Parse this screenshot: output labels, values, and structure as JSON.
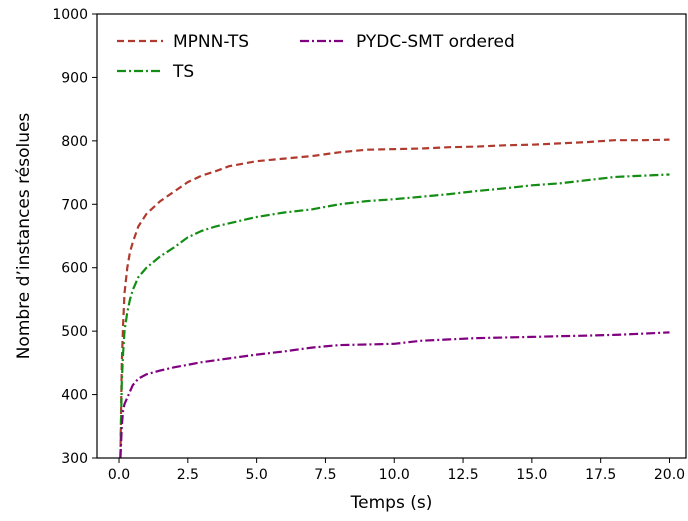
{
  "chart_data": {
    "type": "line",
    "xlabel": "Temps (s)",
    "ylabel": "Nombre d’instances résolues",
    "xlim": [
      -0.8,
      20.6
    ],
    "ylim": [
      300,
      1000
    ],
    "xticks": [
      0.0,
      2.5,
      5.0,
      7.5,
      10.0,
      12.5,
      15.0,
      17.5,
      20.0
    ],
    "xtick_labels": [
      "0.0",
      "2.5",
      "5.0",
      "7.5",
      "10.0",
      "12.5",
      "15.0",
      "17.5",
      "20.0"
    ],
    "yticks": [
      300,
      400,
      500,
      600,
      700,
      800,
      900,
      1000
    ],
    "ytick_labels": [
      "300",
      "400",
      "500",
      "600",
      "700",
      "800",
      "900",
      "1000"
    ],
    "grid": false,
    "legend_position": "top-left",
    "series": [
      {
        "name": "MPNN-TS",
        "color": "#b03a2e",
        "style": "dashed",
        "x": [
          0.05,
          0.1,
          0.15,
          0.2,
          0.3,
          0.4,
          0.5,
          0.7,
          1.0,
          1.5,
          2.0,
          2.5,
          3.0,
          3.5,
          4.0,
          5.0,
          6.0,
          7.0,
          8.0,
          9.0,
          10.0,
          11.0,
          12.0,
          13.0,
          14.0,
          15.0,
          16.0,
          17.0,
          18.0,
          19.0,
          20.0
        ],
        "y": [
          300,
          450,
          510,
          560,
          600,
          625,
          640,
          665,
          685,
          705,
          720,
          735,
          745,
          752,
          760,
          768,
          772,
          776,
          782,
          786,
          787,
          788,
          790,
          791,
          793,
          794,
          796,
          798,
          801,
          801,
          802
        ]
      },
      {
        "name": "TS",
        "color": "#138d13",
        "style": "dashdot",
        "x": [
          0.05,
          0.1,
          0.15,
          0.2,
          0.3,
          0.4,
          0.5,
          0.7,
          1.0,
          1.5,
          2.0,
          2.5,
          3.0,
          3.5,
          4.0,
          5.0,
          6.0,
          7.0,
          8.0,
          9.0,
          10.0,
          11.0,
          12.0,
          13.0,
          14.0,
          15.0,
          16.0,
          17.0,
          18.0,
          19.0,
          20.0
        ],
        "y": [
          300,
          420,
          465,
          500,
          530,
          550,
          565,
          585,
          600,
          618,
          632,
          648,
          658,
          665,
          670,
          680,
          687,
          692,
          700,
          705,
          708,
          712,
          716,
          721,
          725,
          730,
          733,
          738,
          743,
          745,
          747
        ]
      },
      {
        "name": "PYDC-SMT ordered",
        "color": "#800080",
        "style": "dashdot",
        "x": [
          0.05,
          0.1,
          0.15,
          0.2,
          0.3,
          0.4,
          0.5,
          0.7,
          1.0,
          1.5,
          2.0,
          2.5,
          3.0,
          4.0,
          5.0,
          6.0,
          7.0,
          8.0,
          9.0,
          10.0,
          11.0,
          12.0,
          13.0,
          14.0,
          15.0,
          16.0,
          17.0,
          18.0,
          19.0,
          20.0
        ],
        "y": [
          300,
          350,
          375,
          385,
          395,
          405,
          415,
          425,
          432,
          438,
          443,
          447,
          451,
          457,
          463,
          468,
          474,
          478,
          479,
          480,
          485,
          487,
          489,
          490,
          491,
          492,
          493,
          494,
          496,
          498
        ]
      }
    ]
  }
}
